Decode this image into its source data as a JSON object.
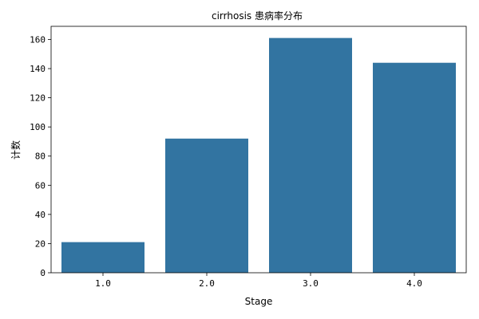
{
  "chart_data": {
    "type": "bar",
    "title": "cirrhosis 患病率分布",
    "xlabel": "Stage",
    "ylabel": "计数",
    "categories": [
      "1.0",
      "2.0",
      "3.0",
      "4.0"
    ],
    "values": [
      21,
      92,
      161,
      144
    ],
    "ylim": [
      0,
      169
    ],
    "yticks": [
      0,
      20,
      40,
      60,
      80,
      100,
      120,
      140,
      160
    ],
    "bar_color": "#3274a1",
    "grid": false
  }
}
